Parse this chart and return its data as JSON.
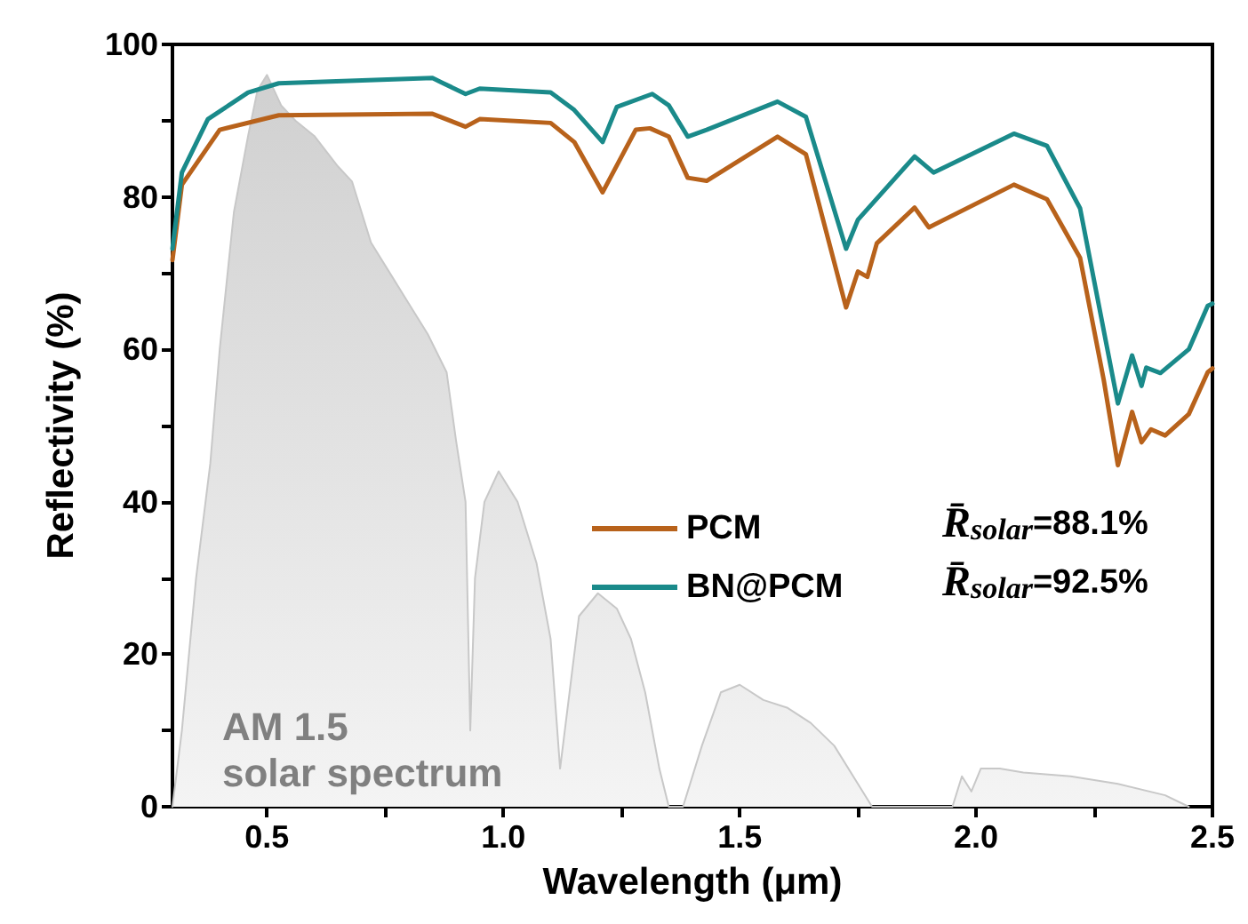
{
  "chart_data": {
    "type": "line",
    "xlabel": "Wavelength (μm)",
    "ylabel": "Reflectivity (%)",
    "xlim": [
      0.3,
      2.5
    ],
    "xticks": [
      0.5,
      {
        "value": 0.75,
        "label": null
      },
      "1.0",
      {
        "value": 1.25,
        "label": null
      },
      1.5,
      {
        "value": 1.75,
        "label": null
      },
      "2.0",
      {
        "value": 2.25,
        "label": null
      },
      2.5
    ],
    "ylim": [
      0,
      100
    ],
    "yticks": [
      0,
      {
        "value": 10,
        "label": null
      },
      20,
      {
        "value": 30,
        "label": null
      },
      40,
      {
        "value": 50,
        "label": null
      },
      60,
      {
        "value": 70,
        "label": null
      },
      80,
      {
        "value": 90,
        "label": null
      },
      100
    ],
    "grid": false,
    "legend": "center",
    "marker": "none",
    "line_style": "solid",
    "annotations": [
      "AM 1.5\nsolar spectrum",
      "R̄$_{solar}$=88.1%",
      "R̄$_{solar}$=92.5%"
    ],
    "series": [
      {
        "type": "area",
        "color": "#c8c8c8",
        "x": [
          0.3,
          0.32,
          0.35,
          0.38,
          0.4,
          0.43,
          0.46,
          0.48,
          0.5,
          0.53,
          0.56,
          0.6,
          0.65,
          0.68,
          0.72,
          0.76,
          0.8,
          0.84,
          0.88,
          0.9,
          0.92,
          0.93,
          0.94,
          0.96,
          0.99,
          1.03,
          1.07,
          1.1,
          1.12,
          1.14,
          1.16,
          1.2,
          1.24,
          1.27,
          1.3,
          1.33,
          1.35,
          1.38,
          1.42,
          1.46,
          1.5,
          1.55,
          1.6,
          1.65,
          1.7,
          1.75,
          1.78,
          1.95,
          1.97,
          1.99,
          2.01,
          2.05,
          2.1,
          2.2,
          2.3,
          2.4,
          2.45
        ],
        "values": [
          0,
          10,
          30,
          45,
          60,
          78,
          88,
          94,
          96,
          92,
          90,
          88,
          84,
          82,
          74,
          70,
          66,
          62,
          57,
          48,
          40,
          10,
          30,
          40,
          44,
          40,
          32,
          22,
          5,
          15,
          25,
          28,
          26,
          22,
          15,
          5,
          0,
          0,
          8,
          15,
          16,
          14,
          13,
          11,
          8,
          3,
          0,
          0,
          4,
          2,
          5,
          5,
          4.5,
          4,
          3,
          1.5,
          0
        ]
      },
      {
        "name": "PCM",
        "color": "#b8621b",
        "x": [
          0.3,
          0.32,
          0.4,
          0.525,
          0.85,
          0.92,
          0.95,
          1.1,
          1.15,
          1.21,
          1.28,
          1.31,
          1.35,
          1.39,
          1.43,
          1.58,
          1.64,
          1.725,
          1.75,
          1.77,
          1.79,
          1.87,
          1.9,
          2.08,
          2.15,
          2.22,
          2.27,
          2.3,
          2.33,
          2.35,
          2.37,
          2.4,
          2.45,
          2.49,
          2.5
        ],
        "values": [
          71.7,
          81.6,
          88.8,
          90.7,
          90.9,
          89.2,
          90.2,
          89.7,
          87.2,
          80.6,
          88.8,
          89,
          87.9,
          82.5,
          82.1,
          87.9,
          85.6,
          65.5,
          70.2,
          69.5,
          73.9,
          78.6,
          76,
          81.6,
          79.7,
          72,
          56,
          44.8,
          51.8,
          47.8,
          49.5,
          48.7,
          51.5,
          57,
          57.5
        ]
      },
      {
        "name": "BN@PCM",
        "color": "#1a8a8a",
        "x": [
          0.3,
          0.32,
          0.375,
          0.46,
          0.525,
          0.85,
          0.87,
          0.92,
          0.95,
          1.1,
          1.15,
          1.21,
          1.24,
          1.315,
          1.35,
          1.39,
          1.43,
          1.58,
          1.64,
          1.725,
          1.75,
          1.87,
          1.91,
          2.08,
          2.15,
          2.22,
          2.3,
          2.33,
          2.35,
          2.36,
          2.39,
          2.45,
          2.49,
          2.5
        ],
        "values": [
          73.2,
          83.2,
          90.2,
          93.7,
          94.9,
          95.6,
          95,
          93.5,
          94.2,
          93.7,
          91.4,
          87.2,
          91.8,
          93.5,
          92,
          87.9,
          88.8,
          92.5,
          90.5,
          73.2,
          77,
          85.3,
          83.2,
          88.3,
          86.7,
          78.5,
          52.9,
          59.2,
          55.2,
          57.6,
          56.9,
          60,
          65.7,
          66
        ]
      }
    ]
  }
}
